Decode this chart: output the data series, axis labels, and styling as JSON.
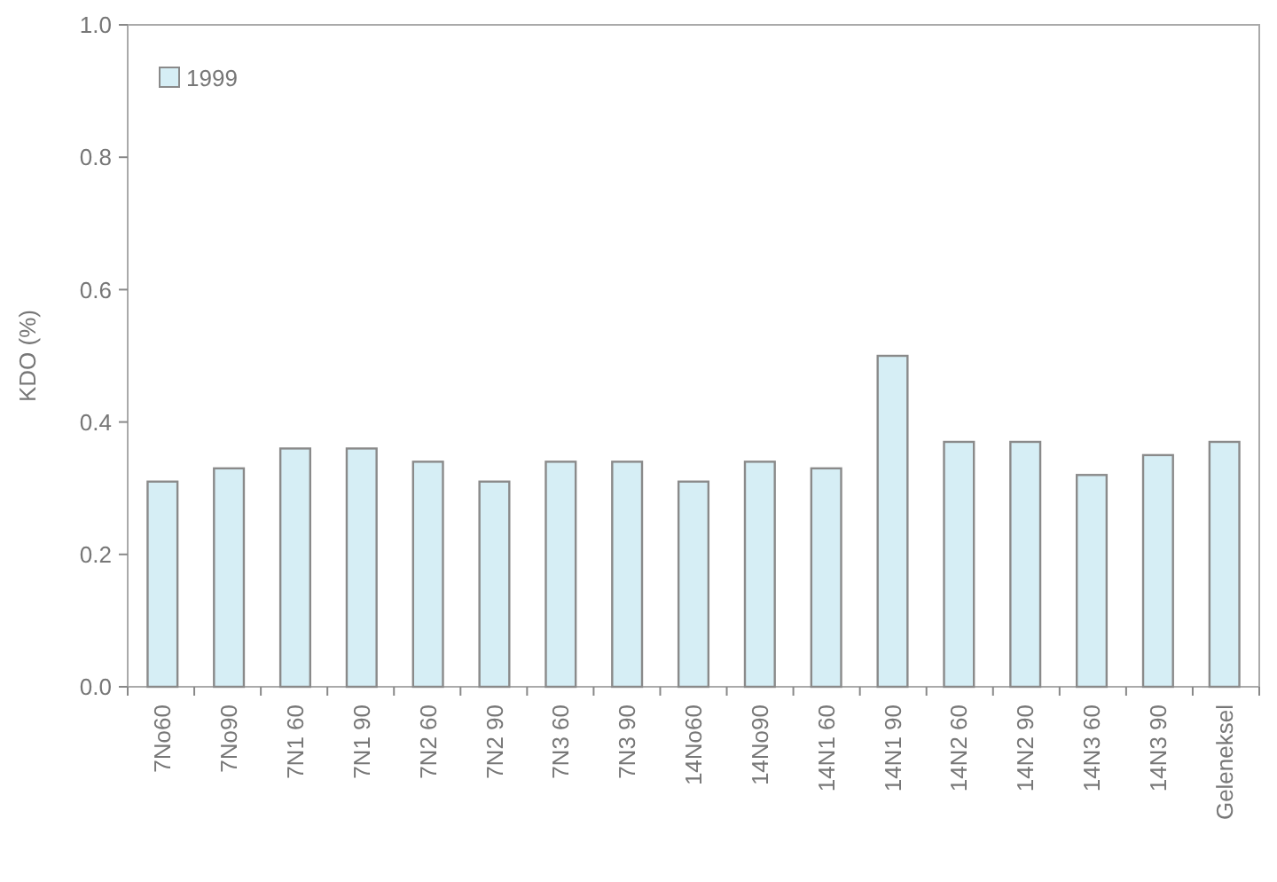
{
  "chart_data": {
    "type": "bar",
    "ylabel": "KDO (%)",
    "categories": [
      "7No60",
      "7No90",
      "7N1 60",
      "7N1 90",
      "7N2 60",
      "7N2 90",
      "7N3 60",
      "7N3 90",
      "14No60",
      "14No90",
      "14N1 60",
      "14N1 90",
      "14N2 60",
      "14N2 90",
      "14N3 60",
      "14N3 90",
      "Geleneksel"
    ],
    "series": [
      {
        "name": "1999",
        "color": "#d6eef5",
        "values": [
          0.31,
          0.33,
          0.36,
          0.36,
          0.34,
          0.31,
          0.34,
          0.34,
          0.31,
          0.34,
          0.33,
          0.5,
          0.37,
          0.37,
          0.32,
          0.35,
          0.37
        ]
      }
    ],
    "ylim": [
      0,
      1
    ],
    "yticks": [
      {
        "value": 0,
        "label": "0.0"
      },
      {
        "value": 0.2,
        "label": "0.2"
      },
      {
        "value": 0.4,
        "label": "0.4"
      },
      {
        "value": 0.6,
        "label": "0.6"
      },
      {
        "value": 0.8,
        "label": "0.8"
      },
      {
        "value": 1,
        "label": "1.0"
      }
    ],
    "grid": false,
    "legend": "top left"
  }
}
